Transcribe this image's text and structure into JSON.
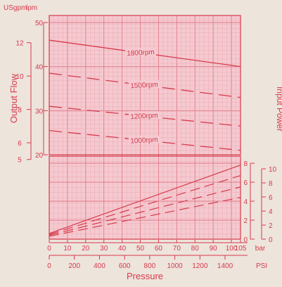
{
  "chart_data": [
    {
      "id": "flow",
      "type": "line",
      "ylabel": "Output Flow",
      "xlabel": "Pressure",
      "x_unit": "bar",
      "y_unit_primary": "lpm",
      "y_unit_secondary": "USgpm",
      "xlim": [
        0,
        105
      ],
      "ylim": [
        20,
        50
      ],
      "y_secondary_range": [
        5,
        12
      ],
      "x_ticks": [
        "0",
        "10",
        "20",
        "30",
        "40",
        "50",
        "60",
        "70",
        "80",
        "90",
        "100",
        "105"
      ],
      "y_ticks_lpm": [
        "20",
        "30",
        "40",
        "50"
      ],
      "y_ticks_usgpm": [
        "5",
        "6",
        "8",
        "10",
        "12"
      ],
      "grid": true,
      "series": [
        {
          "name": "1800rpm",
          "x": [
            0,
            105
          ],
          "y": [
            46,
            40
          ],
          "dash": "solid"
        },
        {
          "name": "1500rpm",
          "x": [
            0,
            105
          ],
          "y": [
            38.5,
            33
          ],
          "dash": "dash"
        },
        {
          "name": "1200rpm",
          "x": [
            0,
            105
          ],
          "y": [
            31,
            26.5
          ],
          "dash": "dash"
        },
        {
          "name": "1000rpm",
          "x": [
            0,
            105
          ],
          "y": [
            25.5,
            21
          ],
          "dash": "dash"
        }
      ]
    },
    {
      "id": "power",
      "type": "line",
      "ylabel": "Input Power",
      "y_ticks_inner": [
        "0",
        "2",
        "4",
        "6",
        "8"
      ],
      "y_ticks_outer": [
        "0",
        "2",
        "4",
        "6",
        "8",
        "10"
      ],
      "ylim": [
        0,
        8
      ],
      "grid": true,
      "series": [
        {
          "x": [
            0,
            105
          ],
          "y": [
            0.6,
            7.8
          ],
          "dash": "solid"
        },
        {
          "x": [
            0,
            105
          ],
          "y": [
            0.5,
            6.7
          ],
          "dash": "dash"
        },
        {
          "x": [
            0,
            105
          ],
          "y": [
            0.4,
            5.5
          ],
          "dash": "dash"
        },
        {
          "x": [
            0,
            105
          ],
          "y": [
            0.3,
            4.4
          ],
          "dash": "dash"
        }
      ]
    }
  ],
  "psi_axis": {
    "unit": "PSI",
    "ticks": [
      "0",
      "200",
      "400",
      "600",
      "800",
      "1000",
      "1200",
      "1400"
    ]
  },
  "colors": {
    "line": "#d63a4c",
    "grid_major": "#e07a88",
    "grid_minor": "#ecaab4",
    "plot_fill": "#f5c9d0",
    "background": "#ede4dc"
  }
}
